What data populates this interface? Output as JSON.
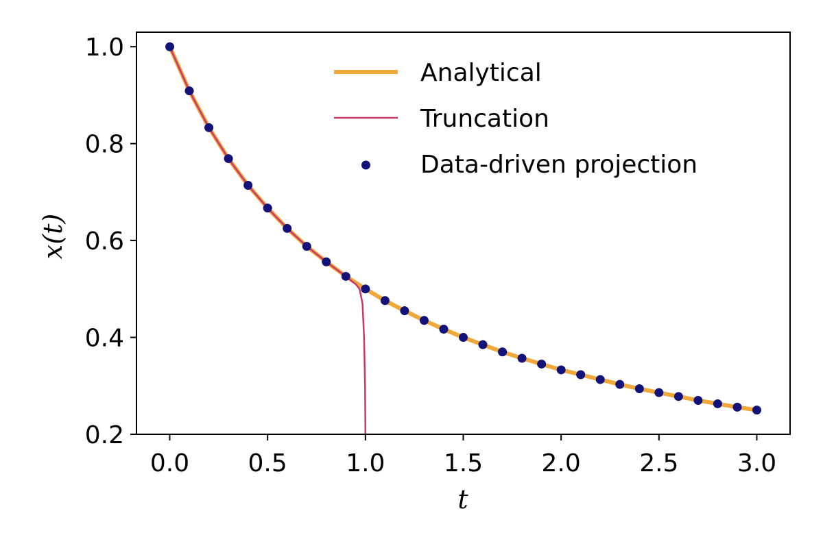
{
  "chart_data": {
    "type": "line",
    "title": "",
    "xlabel": "t",
    "ylabel": "x(t)",
    "xlim": [
      -0.17,
      3.17
    ],
    "ylim": [
      0.2,
      1.03
    ],
    "xticks": [
      0.0,
      0.5,
      1.0,
      1.5,
      2.0,
      2.5,
      3.0
    ],
    "xtick_labels": [
      "0.0",
      "0.5",
      "1.0",
      "1.5",
      "2.0",
      "2.5",
      "3.0"
    ],
    "yticks": [
      0.2,
      0.4,
      0.6,
      0.8,
      1.0
    ],
    "ytick_labels": [
      "0.2",
      "0.4",
      "0.6",
      "0.8",
      "1.0"
    ],
    "grid": false,
    "legend_position": "top-right",
    "series": [
      {
        "name": "Analytical",
        "kind": "line",
        "color": "#f0a83a",
        "x": [
          0.0,
          0.1,
          0.2,
          0.3,
          0.4,
          0.5,
          0.6,
          0.7,
          0.8,
          0.9,
          1.0,
          1.1,
          1.2,
          1.3,
          1.4,
          1.5,
          1.6,
          1.7,
          1.8,
          1.9,
          2.0,
          2.1,
          2.2,
          2.3,
          2.4,
          2.5,
          2.6,
          2.7,
          2.8,
          2.9,
          3.0
        ],
        "y": [
          1.0,
          0.909,
          0.833,
          0.769,
          0.714,
          0.667,
          0.625,
          0.588,
          0.556,
          0.526,
          0.5,
          0.476,
          0.455,
          0.435,
          0.417,
          0.4,
          0.385,
          0.37,
          0.357,
          0.345,
          0.333,
          0.323,
          0.313,
          0.303,
          0.294,
          0.286,
          0.278,
          0.27,
          0.263,
          0.256,
          0.25
        ]
      },
      {
        "name": "Truncation",
        "kind": "line",
        "color": "#c9386b",
        "x": [
          0.0,
          0.1,
          0.2,
          0.3,
          0.4,
          0.5,
          0.6,
          0.7,
          0.8,
          0.9,
          0.95,
          0.97,
          0.985,
          0.993,
          0.998,
          1.0
        ],
        "y": [
          1.0,
          0.909,
          0.833,
          0.769,
          0.714,
          0.667,
          0.625,
          0.588,
          0.556,
          0.526,
          0.51,
          0.5,
          0.47,
          0.4,
          0.3,
          0.2
        ]
      },
      {
        "name": "Data-driven projection",
        "kind": "scatter",
        "color": "#12127a",
        "x": [
          0.0,
          0.1,
          0.2,
          0.3,
          0.4,
          0.5,
          0.6,
          0.7,
          0.8,
          0.9,
          1.0,
          1.1,
          1.2,
          1.3,
          1.4,
          1.5,
          1.6,
          1.7,
          1.8,
          1.9,
          2.0,
          2.1,
          2.2,
          2.3,
          2.4,
          2.5,
          2.6,
          2.7,
          2.8,
          2.9,
          3.0
        ],
        "y": [
          1.0,
          0.909,
          0.833,
          0.769,
          0.714,
          0.667,
          0.625,
          0.588,
          0.556,
          0.526,
          0.5,
          0.476,
          0.455,
          0.435,
          0.417,
          0.4,
          0.385,
          0.37,
          0.357,
          0.345,
          0.333,
          0.323,
          0.313,
          0.303,
          0.294,
          0.286,
          0.278,
          0.27,
          0.263,
          0.256,
          0.25
        ]
      }
    ]
  }
}
